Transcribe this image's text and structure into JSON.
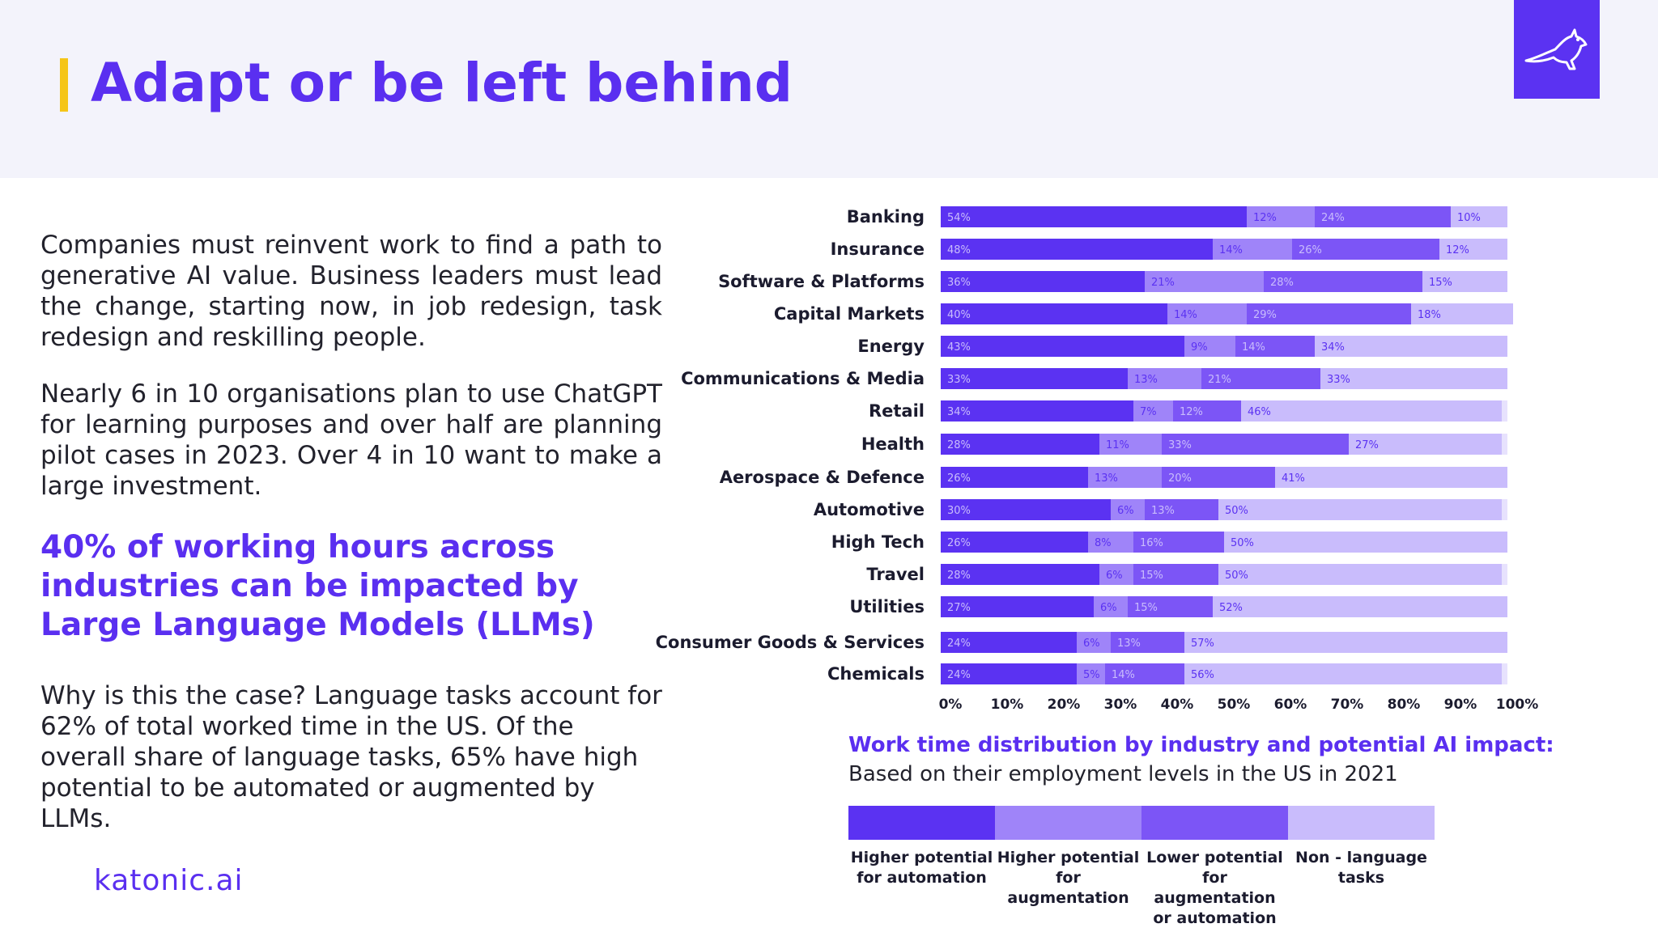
{
  "header": {
    "title": "Adapt or be left behind",
    "logo_icon": "kangaroo-logo-icon"
  },
  "left": {
    "paragraph1": "Companies must reinvent work to find a path to generative AI value. Business leaders must lead the change, starting now, in job redesign, task redesign and reskilling people.",
    "paragraph2": "Nearly 6 in 10 organisations plan to use ChatGPT for learning purposes and over half are planning pilot cases in 2023. Over 4 in 10 want to make a large investment.",
    "highlight": "40% of working hours across industries can be impacted by Large Language Models (LLMs)",
    "paragraph3": "Why is this the case? Language tasks account for 62% of total worked time in the US. Of the overall share of language tasks, 65% have high potential to be automated or augmented by LLMs.",
    "brand": "katonic.ai"
  },
  "colors": {
    "accent": "#5a2ff0",
    "highlight_bar": "#f5c518",
    "higher_automation": "#5b32f2",
    "higher_augmentation": "#9f84f9",
    "lower_potential": "#7c55f6",
    "non_language": "#c9bcfc",
    "track": "#e7e2fd"
  },
  "chart_data": {
    "type": "bar",
    "orientation": "horizontal",
    "stacked": true,
    "title": "Work time distribution by industry and potential AI impact:",
    "subtitle": "Based on their employment levels in the US in 2021",
    "xlim": [
      0,
      100
    ],
    "x_ticks": [
      "0%",
      "10%",
      "20%",
      "30%",
      "40%",
      "50%",
      "60%",
      "70%",
      "80%",
      "90%",
      "100%"
    ],
    "categories": [
      "Banking",
      "Insurance",
      "Software & Platforms",
      "Capital Markets",
      "Energy",
      "Communications & Media",
      "Retail",
      "Health",
      "Aerospace & Defence",
      "Automotive",
      "High Tech",
      "Travel",
      "Utilities",
      "Consumer Goods & Services",
      "Chemicals"
    ],
    "series": [
      {
        "name": "Higher potential for automation",
        "values": [
          54,
          48,
          36,
          40,
          43,
          33,
          34,
          28,
          26,
          30,
          26,
          28,
          27,
          24,
          24
        ]
      },
      {
        "name": "Higher potential for augmentation",
        "values": [
          12,
          14,
          21,
          14,
          9,
          13,
          7,
          11,
          13,
          6,
          8,
          6,
          6,
          6,
          5
        ]
      },
      {
        "name": "Lower potential for augmentation or automation",
        "values": [
          24,
          26,
          28,
          29,
          14,
          21,
          12,
          33,
          20,
          13,
          16,
          15,
          15,
          13,
          14
        ]
      },
      {
        "name": "Non - language tasks",
        "values": [
          10,
          12,
          15,
          18,
          34,
          33,
          46,
          27,
          41,
          50,
          50,
          50,
          52,
          57,
          56
        ]
      }
    ],
    "legend": [
      {
        "label": "Higher potential for automation",
        "lines": [
          "Higher potential",
          "for automation"
        ]
      },
      {
        "label": "Higher potential for augmentation",
        "lines": [
          "Higher potential",
          "for augmentation"
        ]
      },
      {
        "label": "Lower potential for augmentation or automation",
        "lines": [
          "Lower potential",
          "for augmentation",
          "or automation"
        ]
      },
      {
        "label": "Non - language tasks",
        "lines": [
          "Non - language",
          "tasks"
        ]
      }
    ],
    "legend_position": "bottom"
  }
}
